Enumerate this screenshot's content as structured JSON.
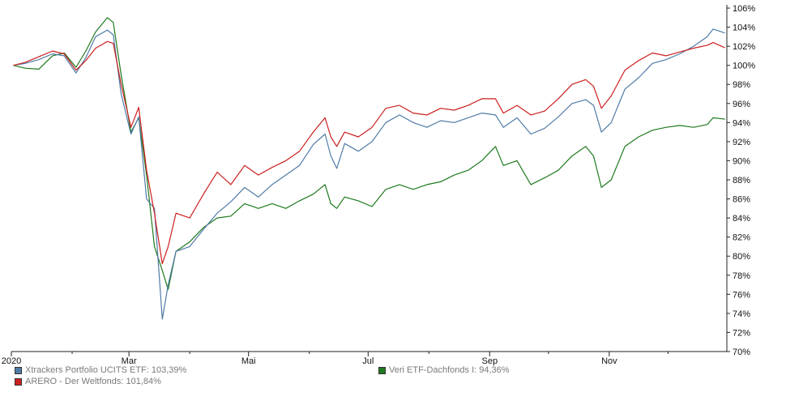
{
  "chart_data": {
    "type": "line",
    "title": "",
    "xlabel": "",
    "ylabel": "",
    "ylim": [
      70,
      106
    ],
    "y_ticks": [
      "106%",
      "104%",
      "102%",
      "100%",
      "98%",
      "96%",
      "94%",
      "92%",
      "90%",
      "88%",
      "86%",
      "84%",
      "82%",
      "80%",
      "78%",
      "76%",
      "74%",
      "72%",
      "70%"
    ],
    "y_tick_values": [
      106,
      104,
      102,
      100,
      98,
      96,
      94,
      92,
      90,
      88,
      86,
      84,
      82,
      80,
      78,
      76,
      74,
      72,
      70
    ],
    "x_range": [
      "2020-01-01",
      "2020-12-31"
    ],
    "x_ticks": [
      {
        "label": "2020",
        "date": "2020-01-01"
      },
      {
        "label": "Mar",
        "date": "2020-03-01"
      },
      {
        "label": "Mai",
        "date": "2020-05-01"
      },
      {
        "label": "Jul",
        "date": "2020-07-01"
      },
      {
        "label": "Sep",
        "date": "2020-09-01"
      },
      {
        "label": "Nov",
        "date": "2020-11-01"
      }
    ],
    "x_minor_ticks": [
      "2020-02-01",
      "2020-04-01",
      "2020-06-01",
      "2020-08-01",
      "2020-10-01",
      "2020-12-01"
    ],
    "grid": false,
    "legend_position": "bottom",
    "series": [
      {
        "name": "Xtrackers Portfolio UCITS ETF: 103,39%",
        "color": "#4f7ba6",
        "points": [
          [
            "2020-01-02",
            100.0
          ],
          [
            "2020-01-08",
            100.2
          ],
          [
            "2020-01-15",
            100.6
          ],
          [
            "2020-01-22",
            101.2
          ],
          [
            "2020-01-28",
            101.0
          ],
          [
            "2020-02-03",
            99.2
          ],
          [
            "2020-02-08",
            100.8
          ],
          [
            "2020-02-13",
            103.0
          ],
          [
            "2020-02-19",
            103.7
          ],
          [
            "2020-02-22",
            103.2
          ],
          [
            "2020-02-26",
            97.0
          ],
          [
            "2020-03-02",
            92.8
          ],
          [
            "2020-03-06",
            94.6
          ],
          [
            "2020-03-10",
            86.0
          ],
          [
            "2020-03-14",
            85.0
          ],
          [
            "2020-03-18",
            73.4
          ],
          [
            "2020-03-21",
            77.0
          ],
          [
            "2020-03-25",
            80.5
          ],
          [
            "2020-04-01",
            81.0
          ],
          [
            "2020-04-08",
            82.8
          ],
          [
            "2020-04-15",
            84.5
          ],
          [
            "2020-04-22",
            85.7
          ],
          [
            "2020-04-29",
            87.2
          ],
          [
            "2020-05-06",
            86.2
          ],
          [
            "2020-05-13",
            87.5
          ],
          [
            "2020-05-20",
            88.5
          ],
          [
            "2020-05-27",
            89.5
          ],
          [
            "2020-06-03",
            91.7
          ],
          [
            "2020-06-09",
            92.8
          ],
          [
            "2020-06-12",
            90.5
          ],
          [
            "2020-06-15",
            89.2
          ],
          [
            "2020-06-19",
            91.8
          ],
          [
            "2020-06-26",
            91.0
          ],
          [
            "2020-07-03",
            92.0
          ],
          [
            "2020-07-10",
            94.0
          ],
          [
            "2020-07-17",
            94.8
          ],
          [
            "2020-07-24",
            94.0
          ],
          [
            "2020-07-31",
            93.5
          ],
          [
            "2020-08-07",
            94.2
          ],
          [
            "2020-08-14",
            94.0
          ],
          [
            "2020-08-21",
            94.5
          ],
          [
            "2020-08-28",
            95.0
          ],
          [
            "2020-09-04",
            94.8
          ],
          [
            "2020-09-08",
            93.5
          ],
          [
            "2020-09-15",
            94.5
          ],
          [
            "2020-09-22",
            92.8
          ],
          [
            "2020-09-29",
            93.4
          ],
          [
            "2020-10-06",
            94.6
          ],
          [
            "2020-10-13",
            96.0
          ],
          [
            "2020-10-20",
            96.4
          ],
          [
            "2020-10-24",
            95.8
          ],
          [
            "2020-10-28",
            93.0
          ],
          [
            "2020-11-02",
            94.0
          ],
          [
            "2020-11-09",
            97.5
          ],
          [
            "2020-11-16",
            98.7
          ],
          [
            "2020-11-23",
            100.2
          ],
          [
            "2020-11-30",
            100.6
          ],
          [
            "2020-12-07",
            101.2
          ],
          [
            "2020-12-14",
            102.0
          ],
          [
            "2020-12-21",
            103.0
          ],
          [
            "2020-12-24",
            103.8
          ],
          [
            "2020-12-30",
            103.39
          ]
        ]
      },
      {
        "name": "ARERO - Der Weltfonds: 101,84%",
        "color": "#cc1f1f",
        "points": [
          [
            "2020-01-02",
            100.0
          ],
          [
            "2020-01-08",
            100.3
          ],
          [
            "2020-01-15",
            100.9
          ],
          [
            "2020-01-22",
            101.5
          ],
          [
            "2020-01-28",
            101.2
          ],
          [
            "2020-02-03",
            99.5
          ],
          [
            "2020-02-08",
            100.5
          ],
          [
            "2020-02-13",
            101.8
          ],
          [
            "2020-02-19",
            102.5
          ],
          [
            "2020-02-22",
            102.3
          ],
          [
            "2020-02-26",
            98.0
          ],
          [
            "2020-03-02",
            93.5
          ],
          [
            "2020-03-06",
            95.6
          ],
          [
            "2020-03-10",
            89.0
          ],
          [
            "2020-03-14",
            84.5
          ],
          [
            "2020-03-18",
            79.2
          ],
          [
            "2020-03-21",
            81.0
          ],
          [
            "2020-03-25",
            84.5
          ],
          [
            "2020-04-01",
            84.0
          ],
          [
            "2020-04-08",
            86.5
          ],
          [
            "2020-04-15",
            88.8
          ],
          [
            "2020-04-22",
            87.5
          ],
          [
            "2020-04-29",
            89.5
          ],
          [
            "2020-05-06",
            88.5
          ],
          [
            "2020-05-13",
            89.3
          ],
          [
            "2020-05-20",
            90.0
          ],
          [
            "2020-05-27",
            91.0
          ],
          [
            "2020-06-03",
            93.0
          ],
          [
            "2020-06-09",
            94.5
          ],
          [
            "2020-06-12",
            92.5
          ],
          [
            "2020-06-15",
            91.5
          ],
          [
            "2020-06-19",
            93.0
          ],
          [
            "2020-06-26",
            92.5
          ],
          [
            "2020-07-03",
            93.5
          ],
          [
            "2020-07-10",
            95.5
          ],
          [
            "2020-07-17",
            95.8
          ],
          [
            "2020-07-24",
            95.0
          ],
          [
            "2020-07-31",
            94.8
          ],
          [
            "2020-08-07",
            95.5
          ],
          [
            "2020-08-14",
            95.3
          ],
          [
            "2020-08-21",
            95.8
          ],
          [
            "2020-08-28",
            96.5
          ],
          [
            "2020-09-04",
            96.5
          ],
          [
            "2020-09-08",
            95.0
          ],
          [
            "2020-09-15",
            95.8
          ],
          [
            "2020-09-22",
            94.8
          ],
          [
            "2020-09-29",
            95.2
          ],
          [
            "2020-10-06",
            96.5
          ],
          [
            "2020-10-13",
            98.0
          ],
          [
            "2020-10-20",
            98.5
          ],
          [
            "2020-10-24",
            97.8
          ],
          [
            "2020-10-28",
            95.5
          ],
          [
            "2020-11-02",
            96.8
          ],
          [
            "2020-11-09",
            99.5
          ],
          [
            "2020-11-16",
            100.5
          ],
          [
            "2020-11-23",
            101.3
          ],
          [
            "2020-11-30",
            101.0
          ],
          [
            "2020-12-07",
            101.4
          ],
          [
            "2020-12-14",
            101.8
          ],
          [
            "2020-12-21",
            102.1
          ],
          [
            "2020-12-24",
            102.4
          ],
          [
            "2020-12-30",
            101.84
          ]
        ]
      },
      {
        "name": "Veri ETF-Dachfonds I: 94,36%",
        "color": "#1e7a1e",
        "points": [
          [
            "2020-01-02",
            100.0
          ],
          [
            "2020-01-08",
            99.7
          ],
          [
            "2020-01-15",
            99.6
          ],
          [
            "2020-01-22",
            101.0
          ],
          [
            "2020-01-28",
            101.3
          ],
          [
            "2020-02-03",
            99.8
          ],
          [
            "2020-02-08",
            101.5
          ],
          [
            "2020-02-13",
            103.5
          ],
          [
            "2020-02-19",
            105.0
          ],
          [
            "2020-02-22",
            104.5
          ],
          [
            "2020-02-26",
            99.0
          ],
          [
            "2020-03-02",
            93.0
          ],
          [
            "2020-03-06",
            94.5
          ],
          [
            "2020-03-10",
            88.5
          ],
          [
            "2020-03-14",
            81.0
          ],
          [
            "2020-03-18",
            78.5
          ],
          [
            "2020-03-21",
            76.5
          ],
          [
            "2020-03-25",
            80.5
          ],
          [
            "2020-04-01",
            81.5
          ],
          [
            "2020-04-08",
            83.0
          ],
          [
            "2020-04-15",
            84.0
          ],
          [
            "2020-04-22",
            84.2
          ],
          [
            "2020-04-29",
            85.5
          ],
          [
            "2020-05-06",
            85.0
          ],
          [
            "2020-05-13",
            85.5
          ],
          [
            "2020-05-20",
            85.0
          ],
          [
            "2020-05-27",
            85.8
          ],
          [
            "2020-06-03",
            86.5
          ],
          [
            "2020-06-09",
            87.5
          ],
          [
            "2020-06-12",
            85.5
          ],
          [
            "2020-06-15",
            85.0
          ],
          [
            "2020-06-19",
            86.2
          ],
          [
            "2020-06-26",
            85.8
          ],
          [
            "2020-07-03",
            85.2
          ],
          [
            "2020-07-10",
            87.0
          ],
          [
            "2020-07-17",
            87.5
          ],
          [
            "2020-07-24",
            87.0
          ],
          [
            "2020-07-31",
            87.5
          ],
          [
            "2020-08-07",
            87.8
          ],
          [
            "2020-08-14",
            88.5
          ],
          [
            "2020-08-21",
            89.0
          ],
          [
            "2020-08-28",
            90.0
          ],
          [
            "2020-09-04",
            91.5
          ],
          [
            "2020-09-08",
            89.5
          ],
          [
            "2020-09-15",
            90.0
          ],
          [
            "2020-09-22",
            87.5
          ],
          [
            "2020-09-29",
            88.2
          ],
          [
            "2020-10-06",
            89.0
          ],
          [
            "2020-10-13",
            90.5
          ],
          [
            "2020-10-20",
            91.5
          ],
          [
            "2020-10-24",
            90.5
          ],
          [
            "2020-10-28",
            87.2
          ],
          [
            "2020-11-02",
            88.0
          ],
          [
            "2020-11-09",
            91.5
          ],
          [
            "2020-11-16",
            92.5
          ],
          [
            "2020-11-23",
            93.2
          ],
          [
            "2020-11-30",
            93.5
          ],
          [
            "2020-12-07",
            93.7
          ],
          [
            "2020-12-14",
            93.5
          ],
          [
            "2020-12-21",
            93.8
          ],
          [
            "2020-12-24",
            94.5
          ],
          [
            "2020-12-30",
            94.36
          ]
        ]
      }
    ]
  }
}
